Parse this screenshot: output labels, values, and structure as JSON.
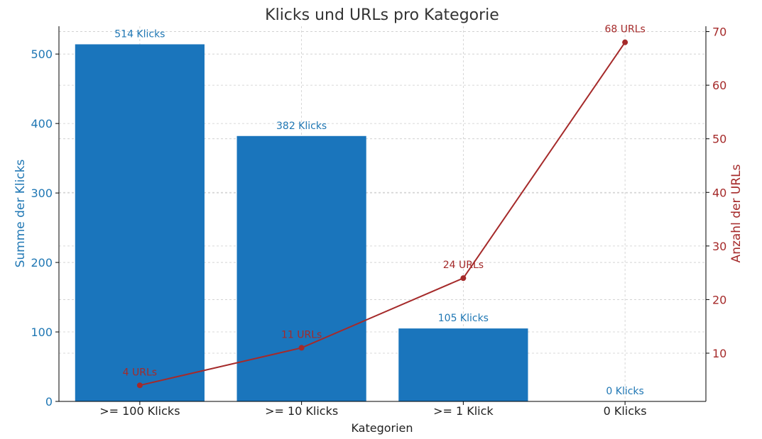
{
  "chart_data": {
    "type": "bar",
    "title": "Klicks und URLs pro Kategorie",
    "xlabel": "Kategorien",
    "categories": [
      ">= 100 Klicks",
      ">= 10 Klicks",
      ">= 1 Klick",
      "0 Klicks"
    ],
    "grid": true,
    "y_left": {
      "label": "Summe der Klicks",
      "ylim": [
        0,
        540
      ],
      "ticks": [
        0,
        100,
        200,
        300,
        400,
        500
      ],
      "color": "#1f77b4"
    },
    "y_right": {
      "label": "Anzahl der URLs",
      "ylim": [
        1,
        71
      ],
      "ticks": [
        10,
        20,
        30,
        40,
        50,
        60,
        70
      ],
      "color": "#a52a2a"
    },
    "series": [
      {
        "type": "bar",
        "axis": "left",
        "color": "#1a75bc",
        "values": [
          514,
          382,
          105,
          0
        ],
        "labels": [
          "514 Klicks",
          "382 Klicks",
          "105 Klicks",
          "0 Klicks"
        ]
      },
      {
        "type": "line",
        "axis": "right",
        "color": "#a52a2a",
        "values": [
          4,
          11,
          24,
          68
        ],
        "labels": [
          "4 URLs",
          "11 URLs",
          "24 URLs",
          "68 URLs"
        ]
      }
    ]
  }
}
